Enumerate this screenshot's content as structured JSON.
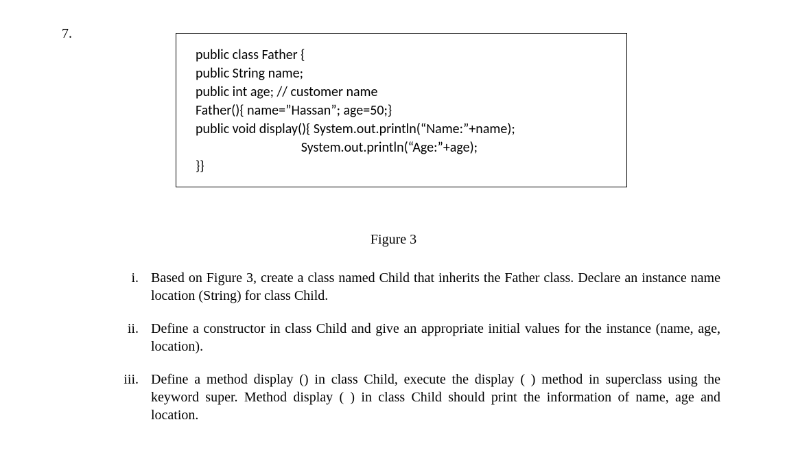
{
  "question_number": "7.",
  "code": {
    "lines": [
      "public class Father {",
      "public String name;",
      "public int age; // customer name",
      "Father(){ name=”Hassan”; age=50;}",
      "",
      "public void display(){ System.out.println(“Name:”+name);",
      "                                  System.out.println(“Age:”+age);",
      "}}"
    ]
  },
  "figure_label": "Figure 3",
  "items": [
    {
      "marker": "i.",
      "text": "Based on Figure 3, create a class named Child that inherits the Father class. Declare an instance name location (String) for class Child."
    },
    {
      "marker": "ii.",
      "text": "Define a constructor in class Child and give an appropriate initial values for the instance (name, age, location)."
    },
    {
      "marker": "iii.",
      "text": "Define a method display () in class Child, execute the display ( ) method in superclass using the keyword super. Method display ( ) in class Child should print the information of name, age and location."
    }
  ],
  "styling": {
    "page_bg": "#ffffff",
    "text_color": "#000000",
    "code_border_color": "#000000",
    "code_font_family": "Calibri",
    "body_font_family": "Times New Roman",
    "body_font_size_pt": 15,
    "code_font_size_pt": 15
  }
}
